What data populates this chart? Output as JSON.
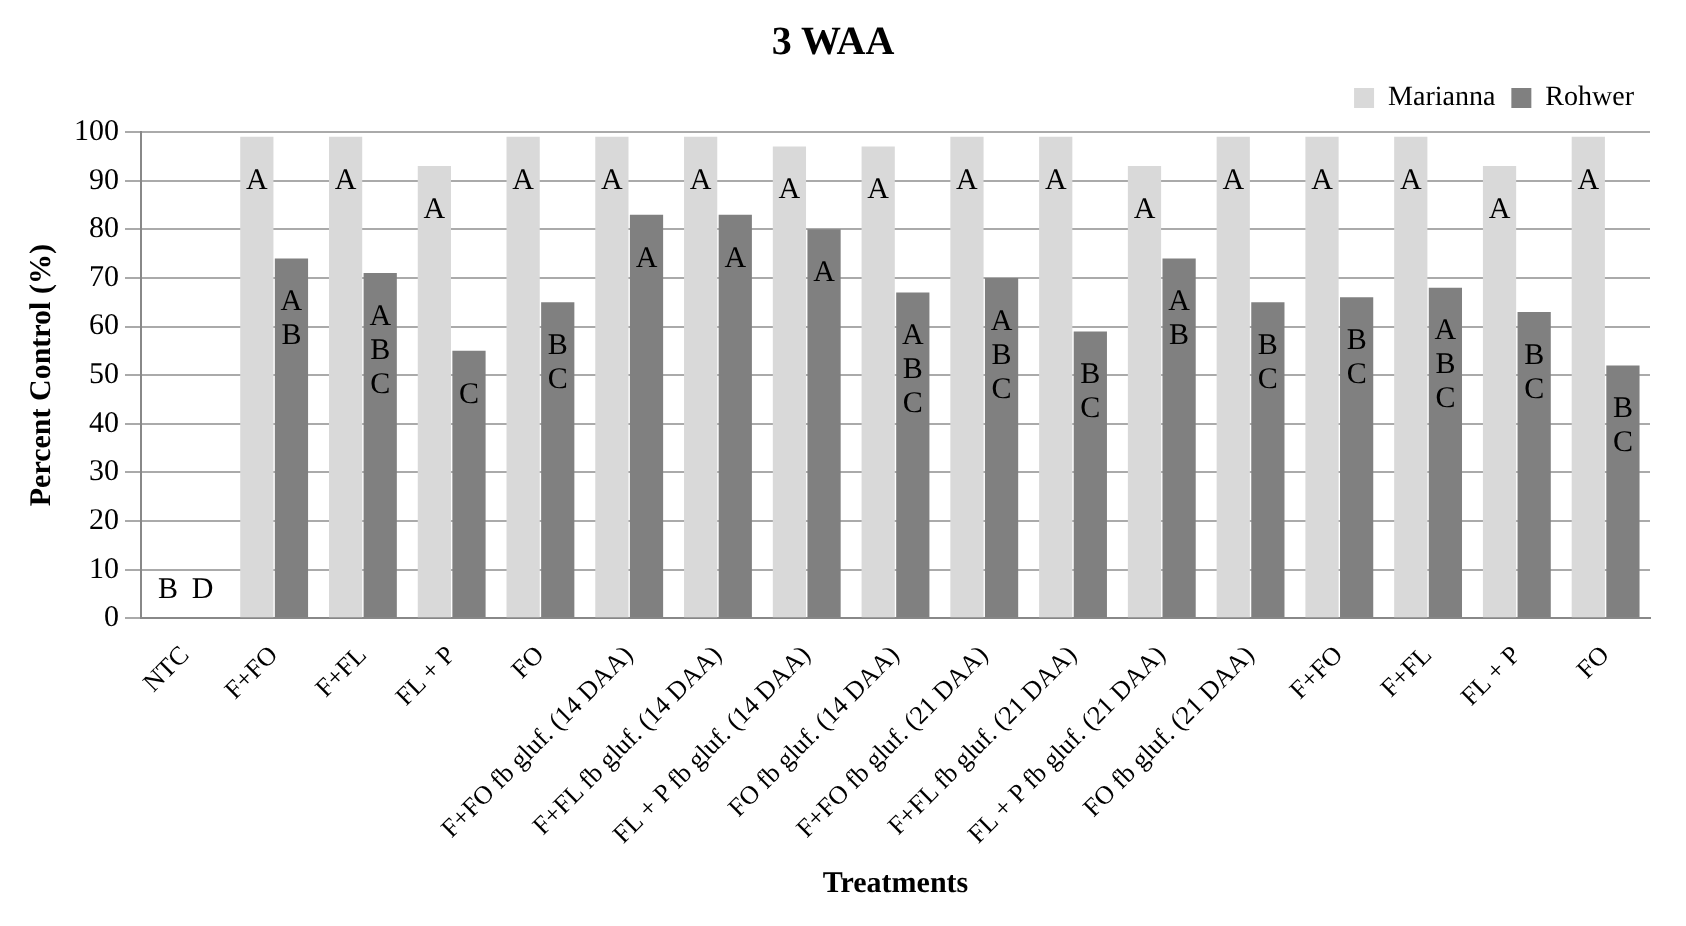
{
  "chart_data": {
    "type": "bar",
    "title": "3 WAA",
    "xlabel": "Treatments",
    "ylabel": "Percent Control (%)",
    "categories": [
      "NTC",
      "F+FO",
      "F+FL",
      "FL + P",
      "FO",
      "F+FO fb gluf. (14 DAA)",
      "F+FL fb gluf. (14 DAA)",
      "FL + P fb gluf. (14 DAA)",
      "FO fb gluf. (14 DAA)",
      "F+FO fb gluf. (21 DAA)",
      "F+FL fb gluf. (21 DAA)",
      "FL + P fb gluf. (21 DAA)",
      "FO fb gluf. (21 DAA)",
      "F+FO",
      "F+FL",
      "FL + P",
      "FO"
    ],
    "series": [
      {
        "name": "Marianna",
        "color": "#d9d9d9",
        "values": [
          0,
          99,
          99,
          93,
          99,
          99,
          99,
          97,
          97,
          99,
          99,
          93,
          99,
          99,
          99,
          93,
          99
        ],
        "value_labels": [
          "B",
          "A",
          "A",
          "A",
          "A",
          "A",
          "A",
          "A",
          "A",
          "A",
          "A",
          "A",
          "A",
          "A",
          "A",
          "A",
          "A"
        ]
      },
      {
        "name": "Rohwer",
        "color": "#808080",
        "values": [
          0,
          74,
          71,
          55,
          65,
          83,
          83,
          80,
          67,
          70,
          59,
          74,
          65,
          66,
          68,
          63,
          52
        ],
        "value_labels": [
          "D",
          "A B",
          "A B C",
          "C",
          "B C",
          "A",
          "A",
          "A",
          "A B C",
          "A B C",
          "B C",
          "A B",
          "B C",
          "B C",
          "A B C",
          "B C",
          "B C"
        ]
      }
    ],
    "ylim": [
      0,
      100
    ],
    "yticks": [
      0,
      10,
      20,
      30,
      40,
      50,
      60,
      70,
      80,
      90,
      100
    ],
    "grid": "y",
    "legend": "top right"
  }
}
